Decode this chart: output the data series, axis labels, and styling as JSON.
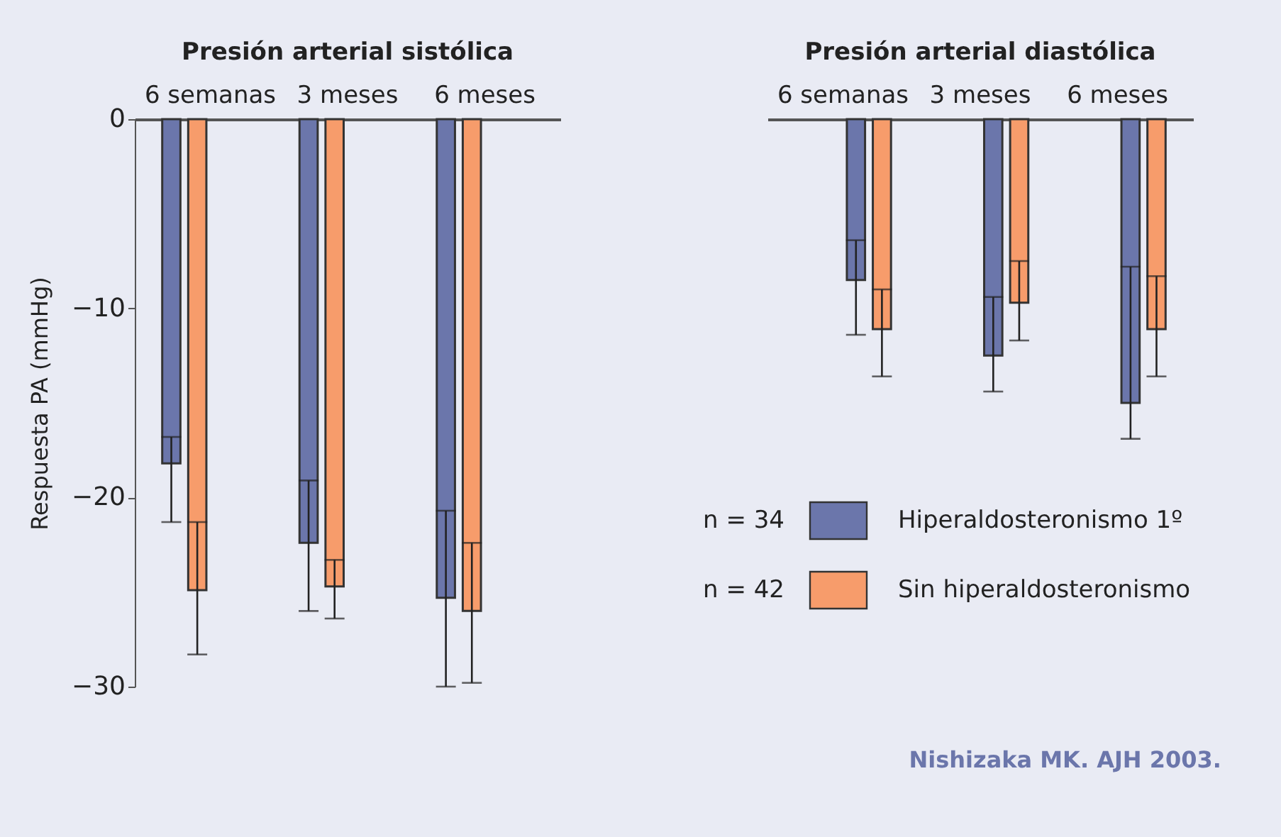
{
  "chart_data": [
    {
      "type": "bar",
      "title": "Presión arterial sistólica",
      "ylabel": "Respuesta PA (mmHg)",
      "categories": [
        "6 semanas",
        "3 meses",
        "6 meses"
      ],
      "ylim": [
        -30,
        0
      ],
      "yticks": [
        0,
        -10,
        -20,
        -30
      ],
      "series": [
        {
          "color": "#6b76ab",
          "values": [
            -18.2,
            -22.4,
            -25.3
          ],
          "errors": [
            [
              -21.3,
              -16.8
            ],
            [
              -26.0,
              -19.1
            ],
            [
              -30.0,
              -20.7
            ]
          ]
        },
        {
          "color": "#f79c6b",
          "values": [
            -24.9,
            -24.7,
            -26.0
          ],
          "errors": [
            [
              -28.3,
              -21.3
            ],
            [
              -26.4,
              -23.3
            ],
            [
              -29.8,
              -22.4
            ]
          ]
        }
      ]
    },
    {
      "type": "bar",
      "title": "Presión arterial diastólica",
      "categories": [
        "6 semanas",
        "3 meses",
        "6 meses"
      ],
      "ylim": [
        -30,
        0
      ],
      "yticks": [
        0,
        -10,
        -20,
        -30
      ],
      "tick_labels": "x",
      "legend": "bottom right",
      "annotations": [
        "n = 34",
        "n = 42",
        "Nishizaka MK. AJH 2003."
      ],
      "series": [
        {
          "name": "Hiperaldosteronismo 1º",
          "color": "#6b76ab",
          "values": [
            -8.5,
            -12.5,
            -15.0
          ],
          "errors": [
            [
              -11.4,
              -6.4
            ],
            [
              -14.4,
              -9.4
            ],
            [
              -16.9,
              -7.8
            ]
          ]
        },
        {
          "name": "Sin hiperaldosteronismo",
          "color": "#f79c6b",
          "values": [
            -11.1,
            -9.7,
            -11.1
          ],
          "errors": [
            [
              -13.6,
              -9.0
            ],
            [
              -11.7,
              -7.5
            ],
            [
              -13.6,
              -8.3
            ]
          ]
        }
      ]
    }
  ]
}
